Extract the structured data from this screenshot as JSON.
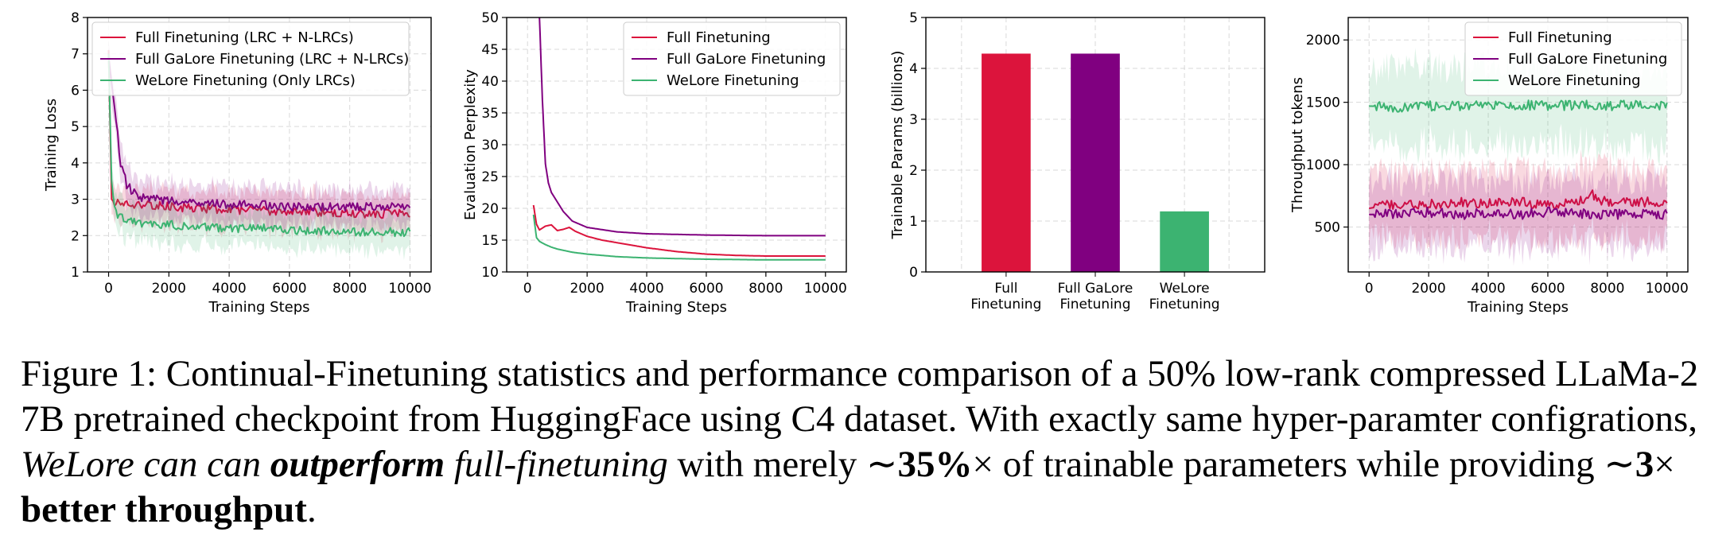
{
  "chart_data": [
    {
      "type": "line",
      "xlabel": "Training Steps",
      "ylabel": "Training Loss",
      "xlim": [
        -700,
        10700
      ],
      "ylim": [
        1,
        8
      ],
      "xticks": [
        0,
        2000,
        4000,
        6000,
        8000,
        10000
      ],
      "yticks": [
        1,
        2,
        3,
        4,
        5,
        6,
        7,
        8
      ],
      "grid": true,
      "legend_position": "top-left",
      "shaded_band": true,
      "series": [
        {
          "name": "Full Finetuning (LRC + N-LRCs)",
          "color": "#dc143c",
          "x": [
            0,
            100,
            200,
            500,
            1000,
            2000,
            3000,
            4000,
            5000,
            6000,
            7000,
            8000,
            9000,
            10000
          ],
          "y": [
            7.1,
            3.0,
            2.9,
            2.9,
            2.85,
            2.8,
            2.75,
            2.7,
            2.7,
            2.65,
            2.65,
            2.6,
            2.6,
            2.6
          ]
        },
        {
          "name": "Full GaLore Finetuning (LRC + N-LRCs)",
          "color": "#800080",
          "x": [
            0,
            200,
            400,
            600,
            800,
            1000,
            2000,
            3000,
            4000,
            5000,
            6000,
            7000,
            8000,
            9000,
            10000
          ],
          "y": [
            6.9,
            5.5,
            4.0,
            3.4,
            3.2,
            3.05,
            2.95,
            2.9,
            2.85,
            2.85,
            2.8,
            2.8,
            2.8,
            2.8,
            2.8
          ]
        },
        {
          "name": "WeLore Finetuning (Only LRCs)",
          "color": "#3cb371",
          "x": [
            0,
            100,
            200,
            400,
            600,
            1000,
            2000,
            3000,
            4000,
            5000,
            6000,
            7000,
            8000,
            9000,
            10000
          ],
          "y": [
            7.0,
            3.5,
            2.7,
            2.5,
            2.4,
            2.35,
            2.3,
            2.25,
            2.2,
            2.2,
            2.15,
            2.15,
            2.1,
            2.1,
            2.1
          ]
        }
      ]
    },
    {
      "type": "line",
      "xlabel": "Training Steps",
      "ylabel": "Evaluation Perplexity",
      "xlim": [
        -700,
        10700
      ],
      "ylim": [
        10,
        50
      ],
      "xticks": [
        0,
        2000,
        4000,
        6000,
        8000,
        10000
      ],
      "yticks": [
        10,
        15,
        20,
        25,
        30,
        35,
        40,
        45,
        50
      ],
      "grid": true,
      "legend_position": "top-right",
      "series": [
        {
          "name": "Full Finetuning",
          "color": "#dc143c",
          "x": [
            200,
            300,
            400,
            600,
            800,
            1000,
            1200,
            1400,
            1600,
            2000,
            2500,
            3000,
            4000,
            5000,
            6000,
            7000,
            8000,
            9000,
            10000
          ],
          "y": [
            20.5,
            17.5,
            16.6,
            17.2,
            17.4,
            16.5,
            16.7,
            17.0,
            16.4,
            15.6,
            15.0,
            14.6,
            13.8,
            13.2,
            12.8,
            12.6,
            12.5,
            12.5,
            12.5
          ]
        },
        {
          "name": "Full GaLore Finetuning",
          "color": "#800080",
          "x": [
            300,
            400,
            500,
            600,
            700,
            800,
            1000,
            1200,
            1500,
            2000,
            3000,
            4000,
            6000,
            8000,
            10000
          ],
          "y": [
            52,
            50,
            37,
            27,
            24,
            22.5,
            21,
            19.5,
            18,
            17,
            16.3,
            16.0,
            15.8,
            15.7,
            15.7
          ]
        },
        {
          "name": "WeLore Finetuning",
          "color": "#3cb371",
          "x": [
            200,
            300,
            400,
            600,
            800,
            1000,
            1500,
            2000,
            3000,
            4000,
            5000,
            6000,
            8000,
            10000
          ],
          "y": [
            19.0,
            15.4,
            14.8,
            14.3,
            13.9,
            13.6,
            13.1,
            12.8,
            12.4,
            12.2,
            12.1,
            12.0,
            11.9,
            11.9
          ]
        }
      ]
    },
    {
      "type": "bar",
      "xlabel": "",
      "ylabel": "Trainable Params (billions)",
      "ylim": [
        0,
        5
      ],
      "yticks": [
        0,
        1,
        2,
        3,
        4,
        5
      ],
      "grid": true,
      "categories": [
        [
          "Full",
          "Finetuning"
        ],
        [
          "Full GaLore",
          "Finetuning"
        ],
        [
          "WeLore",
          "Finetuning"
        ]
      ],
      "values": [
        4.29,
        4.29,
        1.19
      ],
      "colors": [
        "#dc143c",
        "#800080",
        "#3cb371"
      ]
    },
    {
      "type": "line",
      "xlabel": "Training Steps",
      "ylabel": "Throughput tokens",
      "xlim": [
        -700,
        10700
      ],
      "ylim": [
        140,
        2180
      ],
      "xticks": [
        0,
        2000,
        4000,
        6000,
        8000,
        10000
      ],
      "yticks": [
        500,
        1000,
        1500,
        2000
      ],
      "grid": true,
      "legend_position": "top-right",
      "shaded_band": true,
      "series": [
        {
          "name": "Full Finetuning",
          "color": "#dc143c",
          "x": [
            0,
            1000,
            2000,
            3000,
            4000,
            5000,
            6000,
            7000,
            7500,
            8000,
            9000,
            10000
          ],
          "y": [
            650,
            690,
            680,
            700,
            690,
            700,
            680,
            700,
            760,
            690,
            700,
            700
          ]
        },
        {
          "name": "Full GaLore Finetuning",
          "color": "#800080",
          "x": [
            0,
            1000,
            2000,
            3000,
            4000,
            5000,
            6000,
            7000,
            8000,
            9000,
            10000
          ],
          "y": [
            600,
            610,
            620,
            600,
            610,
            600,
            620,
            610,
            600,
            610,
            600
          ]
        },
        {
          "name": "WeLore Finetuning",
          "color": "#3cb371",
          "x": [
            0,
            1000,
            2000,
            3000,
            4000,
            5000,
            6000,
            7000,
            8000,
            9000,
            10000
          ],
          "y": [
            1470,
            1460,
            1470,
            1470,
            1480,
            1480,
            1470,
            1480,
            1470,
            1480,
            1470
          ]
        }
      ]
    }
  ],
  "caption": {
    "part1": "Figure 1: Continual-Finetuning statistics and performance comparison of a 50% low-rank compressed LLaMa-2 7B pretrained checkpoint from HuggingFace using C4 dataset. With exactly same hyper-paramter configrations, ",
    "italic1": "WeLore can can ",
    "bold_italic": "outperform",
    "italic2": " full-finetuning",
    "part2": " with merely ∼",
    "bold1": "35%",
    "part3": "× of trainable parameters while providing ∼",
    "bold2": "3",
    "part4": "× ",
    "bold3": "better throughput",
    "part5": "."
  }
}
